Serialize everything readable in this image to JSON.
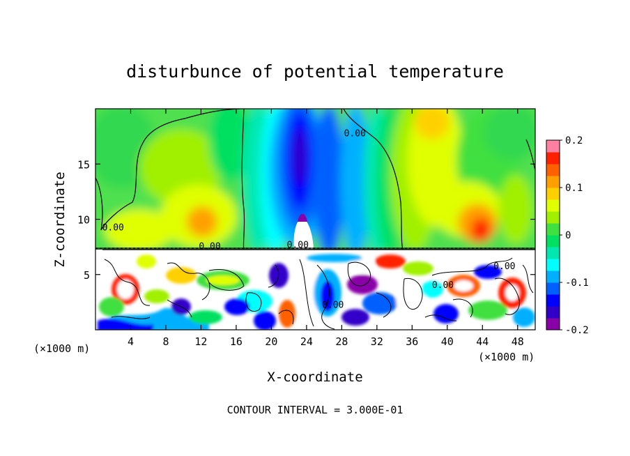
{
  "chart_data": {
    "type": "heatmap",
    "title": "disturbunce of potential temperature",
    "xlabel": "X-coordinate",
    "ylabel": "Z-coordinate",
    "x_unit_left": "(×1000 m)",
    "x_unit_right": "(×1000 m)",
    "footer": "CONTOUR INTERVAL = 3.000E-01",
    "xlim": [
      0,
      50
    ],
    "ylim": [
      0,
      20
    ],
    "xticks": [
      4,
      8,
      12,
      16,
      20,
      24,
      28,
      32,
      36,
      40,
      44,
      48
    ],
    "yticks": [
      5,
      10,
      15
    ],
    "grid": false,
    "colorbar": {
      "range": [
        -0.2,
        0.2
      ],
      "ticks": [
        {
          "value": 0.2,
          "label": "0.2"
        },
        {
          "value": 0.1,
          "label": "0.1"
        },
        {
          "value": 0,
          "label": "0"
        },
        {
          "value": -0.1,
          "label": "-0.1"
        },
        {
          "value": -0.2,
          "label": "-0.2"
        }
      ],
      "colors": [
        "#8a00a8",
        "#3000c8",
        "#0000ff",
        "#0060ff",
        "#00b0ff",
        "#00ffff",
        "#00e8b0",
        "#00e060",
        "#40e040",
        "#a0f000",
        "#e0ff00",
        "#ffd000",
        "#ffa000",
        "#ff6000",
        "#ff2000",
        "#ff80a0"
      ]
    },
    "contour_labels": [
      {
        "x": 2,
        "z": 9,
        "text": "0.00"
      },
      {
        "x": 13,
        "z": 7.3,
        "text": "0.00"
      },
      {
        "x": 23,
        "z": 7.4,
        "text": "0.00"
      },
      {
        "x": 29.5,
        "z": 17.5,
        "text": "0.00"
      },
      {
        "x": 27,
        "z": 2,
        "text": "0.00"
      },
      {
        "x": 39.5,
        "z": 3.8,
        "text": "0.00"
      },
      {
        "x": 46.5,
        "z": 5.5,
        "text": "0.00"
      }
    ]
  }
}
